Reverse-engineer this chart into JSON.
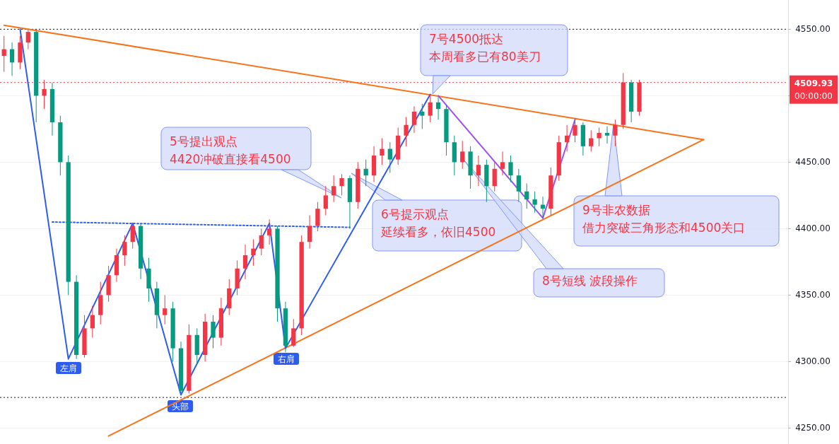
{
  "chart_data": {
    "type": "candlestick",
    "categories": [
      null,
      null,
      null,
      null,
      null,
      null,
      null,
      null,
      null,
      null,
      null,
      null,
      null,
      null,
      null,
      null,
      null,
      null,
      null,
      null,
      null,
      null,
      null,
      null,
      null,
      null,
      null,
      null,
      null,
      null,
      null,
      null,
      null,
      null,
      null,
      null,
      null,
      null,
      null,
      null,
      null,
      null,
      null,
      null,
      null,
      null,
      null,
      null,
      null,
      null,
      null,
      null,
      null,
      null,
      null,
      null,
      null,
      null,
      null,
      null,
      null,
      null,
      null,
      null,
      null,
      null,
      null,
      null,
      null,
      null,
      null,
      null,
      null,
      null,
      null,
      null,
      null,
      null,
      null,
      null,
      null,
      null,
      null,
      null,
      null,
      null,
      null,
      null,
      null,
      null,
      null,
      null,
      null,
      null,
      null,
      null,
      null,
      null
    ],
    "ohlc": [
      [
        4530,
        4545,
        4518,
        4535
      ],
      [
        4535,
        4540,
        4515,
        4525
      ],
      [
        4525,
        4545,
        4520,
        4540
      ],
      [
        4540,
        4550,
        4535,
        4548
      ],
      [
        4548,
        4549,
        4480,
        4500
      ],
      [
        4500,
        4512,
        4490,
        4505
      ],
      [
        4505,
        4510,
        4470,
        4480
      ],
      [
        4480,
        4485,
        4440,
        4450
      ],
      [
        4450,
        4455,
        4350,
        4360
      ],
      [
        4360,
        4365,
        4302,
        4305
      ],
      [
        4305,
        4335,
        4303,
        4325
      ],
      [
        4325,
        4342,
        4318,
        4335
      ],
      [
        4335,
        4360,
        4328,
        4350
      ],
      [
        4350,
        4372,
        4345,
        4365
      ],
      [
        4365,
        4385,
        4360,
        4380
      ],
      [
        4380,
        4395,
        4372,
        4390
      ],
      [
        4390,
        4404,
        4385,
        4402
      ],
      [
        4402,
        4404,
        4362,
        4370
      ],
      [
        4370,
        4378,
        4345,
        4355
      ],
      [
        4355,
        4360,
        4325,
        4335
      ],
      [
        4335,
        4350,
        4328,
        4340
      ],
      [
        4340,
        4345,
        4300,
        4310
      ],
      [
        4310,
        4315,
        4275,
        4278
      ],
      [
        4278,
        4328,
        4276,
        4320
      ],
      [
        4320,
        4325,
        4298,
        4305
      ],
      [
        4305,
        4336,
        4300,
        4330
      ],
      [
        4330,
        4335,
        4310,
        4318
      ],
      [
        4318,
        4348,
        4312,
        4340
      ],
      [
        4340,
        4362,
        4335,
        4355
      ],
      [
        4355,
        4376,
        4350,
        4370
      ],
      [
        4370,
        4388,
        4362,
        4380
      ],
      [
        4380,
        4392,
        4372,
        4385
      ],
      [
        4385,
        4400,
        4380,
        4395
      ],
      [
        4395,
        4407,
        4388,
        4400
      ],
      [
        4400,
        4402,
        4330,
        4340
      ],
      [
        4340,
        4345,
        4307,
        4312
      ],
      [
        4312,
        4332,
        4311,
        4325
      ],
      [
        4325,
        4395,
        4320,
        4390
      ],
      [
        4390,
        4410,
        4385,
        4402
      ],
      [
        4402,
        4420,
        4398,
        4415
      ],
      [
        4415,
        4432,
        4410,
        4425
      ],
      [
        4425,
        4440,
        4420,
        4432
      ],
      [
        4432,
        4441,
        4425,
        4438
      ],
      [
        4438,
        4440,
        4400,
        4420
      ],
      [
        4420,
        4450,
        4415,
        4445
      ],
      [
        4445,
        4452,
        4432,
        4440
      ],
      [
        4440,
        4462,
        4435,
        4455
      ],
      [
        4455,
        4468,
        4448,
        4460
      ],
      [
        4460,
        4465,
        4442,
        4452
      ],
      [
        4452,
        4476,
        4448,
        4470
      ],
      [
        4470,
        4484,
        4462,
        4478
      ],
      [
        4478,
        4492,
        4472,
        4488
      ],
      [
        4488,
        4494,
        4475,
        4485
      ],
      [
        4485,
        4501,
        4480,
        4495
      ],
      [
        4495,
        4499,
        4482,
        4490
      ],
      [
        4490,
        4493,
        4455,
        4465
      ],
      [
        4465,
        4470,
        4440,
        4450
      ],
      [
        4450,
        4466,
        4445,
        4458
      ],
      [
        4458,
        4462,
        4430,
        4440
      ],
      [
        4440,
        4455,
        4432,
        4448
      ],
      [
        4448,
        4452,
        4420,
        4432
      ],
      [
        4432,
        4450,
        4428,
        4445
      ],
      [
        4445,
        4458,
        4440,
        4450
      ],
      [
        4450,
        4455,
        4435,
        4440
      ],
      [
        4440,
        4445,
        4420,
        4428
      ],
      [
        4428,
        4434,
        4415,
        4422
      ],
      [
        4422,
        4428,
        4412,
        4418
      ],
      [
        4418,
        4424,
        4408,
        4415
      ],
      [
        4415,
        4446,
        4410,
        4440
      ],
      [
        4440,
        4470,
        4436,
        4465
      ],
      [
        4465,
        4478,
        4458,
        4470
      ],
      [
        4470,
        4483,
        4465,
        4478
      ],
      [
        4478,
        4480,
        4455,
        4462
      ],
      [
        4462,
        4474,
        4458,
        4468
      ],
      [
        4468,
        4476,
        4462,
        4472
      ],
      [
        4472,
        4477,
        4464,
        4470
      ],
      [
        4470,
        4482,
        4462,
        4478
      ],
      [
        4478,
        4517,
        4475,
        4510
      ],
      [
        4510,
        4512,
        4480,
        4488
      ],
      [
        4488,
        4512,
        4485,
        4509.93
      ],
      null,
      null,
      null,
      null,
      null,
      null,
      null,
      null,
      null,
      null,
      null,
      null,
      null,
      null,
      null,
      null,
      null,
      null
    ],
    "colors": [
      "#f23645",
      "#089981",
      "#f23645",
      "#f23645",
      "#089981",
      "#f23645",
      "#089981",
      "#089981",
      "#089981",
      "#089981",
      "#f23645",
      "#f23645",
      "#f23645",
      "#f23645",
      "#f23645",
      "#f23645",
      "#f23645",
      "#089981",
      "#089981",
      "#089981",
      "#f23645",
      "#089981",
      "#089981",
      "#f23645",
      "#089981",
      "#f23645",
      "#089981",
      "#f23645",
      "#f23645",
      "#f23645",
      "#f23645",
      "#f23645",
      "#f23645",
      "#f23645",
      "#089981",
      "#089981",
      "#f23645",
      "#f23645",
      "#f23645",
      "#f23645",
      "#f23645",
      "#f23645",
      "#f23645",
      "#089981",
      "#f23645",
      "#089981",
      "#f23645",
      "#f23645",
      "#089981",
      "#f23645",
      "#f23645",
      "#f23645",
      "#089981",
      "#f23645",
      "#089981",
      "#089981",
      "#089981",
      "#f23645",
      "#089981",
      "#f23645",
      "#089981",
      "#f23645",
      "#f23645",
      "#089981",
      "#089981",
      "#089981",
      "#089981",
      "#089981",
      "#f23645",
      "#f23645",
      "#f23645",
      "#f23645",
      "#089981",
      "#f23645",
      "#f23645",
      "#089981",
      "#f23645",
      "#f23645",
      "#089981",
      "#f23645",
      null,
      null,
      null,
      null,
      null,
      null,
      null,
      null,
      null,
      null,
      null,
      null,
      null,
      null,
      null,
      null,
      null,
      null
    ],
    "series": [
      {
        "type": "line",
        "color": "#f7731c",
        "values": [
          4553,
          null,
          null,
          null,
          null,
          null,
          null,
          null,
          null,
          null,
          null,
          null,
          null,
          null,
          null,
          null,
          null,
          null,
          null,
          null,
          null,
          null,
          null,
          null,
          null,
          null,
          null,
          null,
          null,
          null,
          null,
          null,
          null,
          null,
          null,
          null,
          null,
          null,
          null,
          null,
          null,
          null,
          null,
          null,
          null,
          null,
          null,
          null,
          null,
          null,
          null,
          null,
          null,
          null,
          null,
          null,
          null,
          null,
          null,
          null,
          null,
          null,
          null,
          null,
          null,
          null,
          null,
          null,
          null,
          null,
          null,
          null,
          null,
          null,
          null,
          null,
          null,
          null,
          null,
          null,
          null,
          null,
          null,
          null,
          null,
          null,
          null,
          4467,
          null,
          null,
          null,
          null,
          null,
          null,
          null,
          null,
          null,
          null
        ]
      },
      {
        "type": "line",
        "color": "#f7731c",
        "values": [
          null,
          null,
          null,
          null,
          null,
          null,
          null,
          null,
          null,
          null,
          null,
          null,
          null,
          4244,
          null,
          null,
          null,
          null,
          null,
          null,
          null,
          null,
          null,
          null,
          null,
          null,
          null,
          null,
          null,
          null,
          null,
          null,
          null,
          null,
          null,
          null,
          null,
          null,
          null,
          null,
          null,
          null,
          null,
          null,
          null,
          null,
          null,
          null,
          null,
          null,
          null,
          null,
          null,
          null,
          null,
          null,
          null,
          null,
          null,
          null,
          null,
          null,
          null,
          null,
          null,
          null,
          null,
          null,
          null,
          null,
          null,
          null,
          null,
          null,
          null,
          null,
          null,
          null,
          null,
          null,
          null,
          null,
          null,
          null,
          null,
          null,
          null,
          4467,
          null,
          null,
          null,
          null,
          null,
          null,
          null,
          null,
          null,
          null
        ]
      },
      {
        "type": "line",
        "color": "#2f5cf0",
        "values": [
          null,
          null,
          4550,
          null,
          null,
          null,
          null,
          null,
          4302,
          null,
          null,
          null,
          null,
          null,
          null,
          null,
          4404,
          null,
          null,
          null,
          null,
          null,
          4275,
          null,
          null,
          null,
          null,
          null,
          null,
          null,
          null,
          null,
          null,
          4404,
          null,
          4310,
          null,
          null,
          null,
          null,
          null,
          null,
          null,
          null,
          null,
          null,
          null,
          null,
          null,
          null,
          null,
          null,
          null,
          4501,
          null,
          null,
          null,
          null,
          null,
          null,
          null,
          null,
          null,
          null,
          null,
          null,
          null,
          null,
          null,
          null,
          null,
          null,
          null,
          null,
          null,
          null,
          null,
          null,
          null,
          null,
          null,
          null,
          null,
          null,
          null,
          null,
          null,
          null,
          null,
          null,
          null,
          null,
          null,
          null,
          null,
          null,
          null,
          null
        ]
      },
      {
        "type": "line",
        "color": "#2f5cf0",
        "line_style": "dotted",
        "values": [
          null,
          null,
          null,
          null,
          null,
          null,
          4405,
          null,
          null,
          null,
          null,
          null,
          null,
          null,
          null,
          null,
          null,
          null,
          null,
          null,
          null,
          null,
          null,
          null,
          null,
          null,
          null,
          null,
          null,
          null,
          null,
          null,
          null,
          null,
          null,
          null,
          null,
          null,
          null,
          null,
          null,
          null,
          null,
          4401,
          null,
          null,
          null,
          null,
          null,
          null,
          null,
          null,
          null,
          null,
          null,
          null,
          null,
          null,
          null,
          null,
          null,
          null,
          null,
          null,
          null,
          null,
          null,
          null,
          null,
          null,
          null,
          null,
          null,
          null,
          null,
          null,
          null,
          null,
          null,
          null,
          null,
          null,
          null,
          null,
          null,
          null,
          null,
          null,
          null,
          null,
          null,
          null,
          null,
          null,
          null,
          null,
          null,
          null
        ]
      },
      {
        "type": "line",
        "color": "#9c50f5",
        "values": [
          null,
          null,
          null,
          null,
          null,
          null,
          null,
          null,
          null,
          null,
          null,
          null,
          null,
          null,
          null,
          null,
          null,
          null,
          null,
          null,
          null,
          null,
          null,
          null,
          null,
          null,
          null,
          null,
          null,
          null,
          null,
          null,
          null,
          null,
          null,
          null,
          null,
          null,
          null,
          null,
          null,
          null,
          null,
          null,
          null,
          null,
          null,
          null,
          null,
          null,
          null,
          null,
          null,
          null,
          4500,
          null,
          null,
          null,
          null,
          null,
          null,
          null,
          null,
          null,
          null,
          null,
          null,
          4408,
          null,
          null,
          null,
          null,
          null,
          null,
          null,
          null,
          null,
          null,
          null,
          null,
          null,
          null,
          null,
          null,
          null,
          null,
          null,
          null,
          null,
          null,
          null,
          null,
          null,
          null,
          null,
          null,
          null,
          null
        ]
      },
      {
        "type": "line",
        "color": "#9c50f5",
        "values": [
          null,
          null,
          null,
          null,
          null,
          null,
          null,
          null,
          null,
          null,
          null,
          null,
          null,
          null,
          null,
          null,
          null,
          null,
          null,
          null,
          null,
          null,
          null,
          null,
          null,
          null,
          null,
          null,
          null,
          null,
          null,
          null,
          null,
          null,
          null,
          null,
          null,
          null,
          null,
          null,
          null,
          null,
          null,
          null,
          null,
          null,
          null,
          null,
          null,
          null,
          null,
          null,
          null,
          null,
          null,
          null,
          null,
          null,
          null,
          null,
          null,
          null,
          null,
          null,
          null,
          null,
          null,
          4408,
          null,
          null,
          null,
          4482,
          null,
          null,
          null,
          null,
          null,
          null,
          null,
          null,
          null,
          null,
          null,
          null,
          null,
          null,
          null,
          null,
          null,
          null,
          null,
          null,
          null,
          null,
          null,
          null,
          null,
          null
        ]
      }
    ],
    "ylim": [
      4238,
      4572
    ],
    "yticks": [
      {
        "value": 4250,
        "label": "4250.00"
      },
      {
        "value": 4300,
        "label": "4300.00"
      },
      {
        "value": 4350,
        "label": "4350.00"
      },
      {
        "value": 4400,
        "label": "4400.00"
      },
      {
        "value": 4450,
        "label": "4450.00"
      },
      {
        "value": 4500,
        "label": null
      },
      {
        "value": 4550,
        "label": "4550.00"
      }
    ],
    "tick_labels": "y",
    "grid": "y",
    "ref_lines": [
      {
        "axis": "y",
        "value": 4550,
        "color": "#131722",
        "line_style": "dotted"
      },
      {
        "axis": "y",
        "value": 4273,
        "color": "#131722",
        "line_style": "dotted"
      },
      {
        "axis": "y",
        "value": 4509.93,
        "label": "4509.93",
        "color": "#f23645",
        "line_style": "dotted"
      }
    ],
    "annotations": [
      "5号提出观点4420冲破直接看4500",
      "6号提示观点延续看多，依旧4500",
      "7号4500抵达本周看多已有80美刀",
      "8号短线 波段操作",
      "9号非农数据借力突破三角形态和4500关口",
      "左肩",
      "头部",
      "右肩",
      "00:00:00"
    ]
  }
}
